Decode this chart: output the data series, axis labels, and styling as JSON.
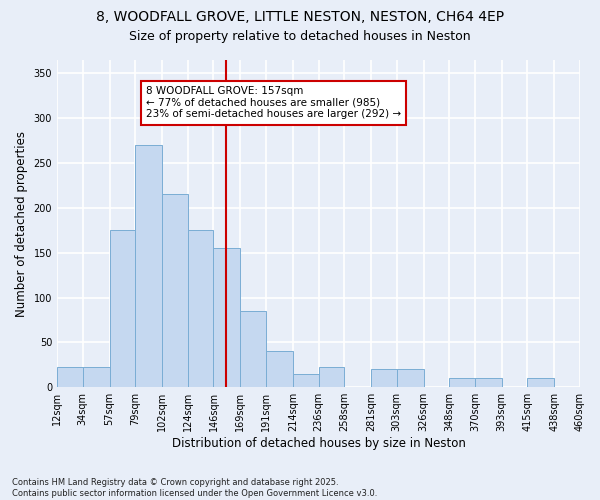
{
  "title1": "8, WOODFALL GROVE, LITTLE NESTON, NESTON, CH64 4EP",
  "title2": "Size of property relative to detached houses in Neston",
  "xlabel": "Distribution of detached houses by size in Neston",
  "ylabel": "Number of detached properties",
  "bar_color": "#c5d8f0",
  "bar_edge_color": "#7aadd4",
  "background_color": "#e8eef8",
  "grid_color": "#ffffff",
  "vline_x": 157,
  "vline_color": "#cc0000",
  "annotation_text": "8 WOODFALL GROVE: 157sqm\n← 77% of detached houses are smaller (985)\n23% of semi-detached houses are larger (292) →",
  "annotation_box_color": "#cc0000",
  "bins": [
    12,
    34,
    57,
    79,
    102,
    124,
    146,
    169,
    191,
    214,
    236,
    258,
    281,
    303,
    326,
    348,
    370,
    393,
    415,
    438,
    460
  ],
  "counts": [
    23,
    23,
    175,
    270,
    215,
    175,
    155,
    85,
    40,
    15,
    22,
    0,
    20,
    20,
    0,
    10,
    10,
    0,
    10,
    0
  ],
  "ylim": [
    0,
    365
  ],
  "yticks": [
    0,
    50,
    100,
    150,
    200,
    250,
    300,
    350
  ],
  "footnote": "Contains HM Land Registry data © Crown copyright and database right 2025.\nContains public sector information licensed under the Open Government Licence v3.0.",
  "title_fontsize": 10,
  "subtitle_fontsize": 9,
  "tick_fontsize": 7,
  "label_fontsize": 8.5,
  "annot_fontsize": 7.5
}
